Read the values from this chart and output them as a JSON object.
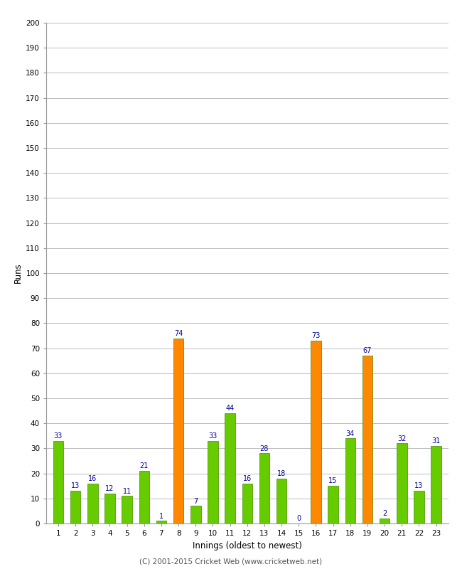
{
  "innings": [
    1,
    2,
    3,
    4,
    5,
    6,
    7,
    8,
    9,
    10,
    11,
    12,
    13,
    14,
    15,
    16,
    17,
    18,
    19,
    20,
    21,
    22,
    23
  ],
  "values": [
    33,
    13,
    16,
    12,
    11,
    21,
    1,
    74,
    7,
    33,
    44,
    16,
    28,
    18,
    0,
    73,
    15,
    34,
    67,
    2,
    32,
    13,
    31
  ],
  "colors": [
    "#66cc00",
    "#66cc00",
    "#66cc00",
    "#66cc00",
    "#66cc00",
    "#66cc00",
    "#66cc00",
    "#ff8800",
    "#66cc00",
    "#66cc00",
    "#66cc00",
    "#66cc00",
    "#66cc00",
    "#66cc00",
    "#66cc00",
    "#ff8800",
    "#66cc00",
    "#66cc00",
    "#ff8800",
    "#66cc00",
    "#66cc00",
    "#66cc00",
    "#66cc00"
  ],
  "ylabel": "Runs",
  "xlabel": "Innings (oldest to newest)",
  "ylim": [
    0,
    200
  ],
  "yticks": [
    0,
    10,
    20,
    30,
    40,
    50,
    60,
    70,
    80,
    90,
    100,
    110,
    120,
    130,
    140,
    150,
    160,
    170,
    180,
    190,
    200
  ],
  "footer": "(C) 2001-2015 Cricket Web (www.cricketweb.net)",
  "label_color": "#000099",
  "bar_edge_color": "#448800",
  "background_color": "#ffffff",
  "plot_bg_color": "#ffffff",
  "grid_color": "#bbbbbb"
}
